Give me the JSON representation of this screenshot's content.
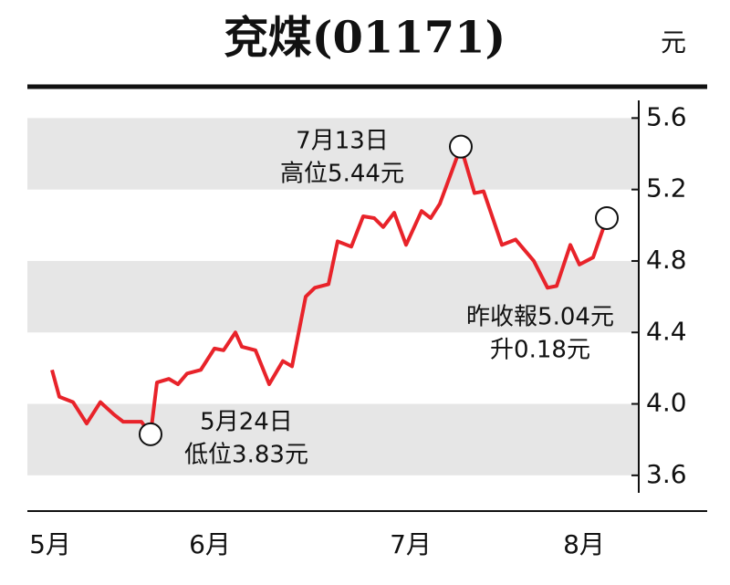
{
  "chart_data": {
    "type": "line",
    "title": "兗煤(01171)",
    "y_unit": "元",
    "x": [
      5.7,
      6.5,
      8.0,
      9.5,
      11.0,
      12.5,
      13.5,
      15.5,
      16.5,
      17.2,
      18.5,
      19.5,
      20.5,
      22.0,
      23.5,
      24.5,
      25.8,
      26.5,
      28.0,
      29.5,
      31.0,
      32.0,
      33.5,
      34.5,
      36.0,
      37.0,
      38.5,
      39.8,
      41.0,
      42.0,
      43.2,
      44.5,
      46.2,
      47.2,
      48.2,
      49.5,
      50.5,
      52.0,
      53.0,
      55.0,
      56.5,
      58.5,
      60.0,
      61.0,
      62.5,
      63.5,
      65.0,
      66.5
    ],
    "series": [
      {
        "name": "兗煤",
        "color": "#e8232a",
        "values": [
          4.19,
          4.04,
          4.01,
          3.89,
          4.01,
          3.94,
          3.9,
          3.9,
          3.83,
          4.12,
          4.14,
          4.11,
          4.17,
          4.19,
          4.31,
          4.3,
          4.4,
          4.32,
          4.3,
          4.11,
          4.24,
          4.21,
          4.6,
          4.65,
          4.67,
          4.91,
          4.88,
          5.05,
          5.04,
          4.99,
          5.07,
          4.89,
          5.08,
          5.04,
          5.12,
          5.3,
          5.44,
          5.18,
          5.19,
          4.89,
          4.92,
          4.8,
          4.65,
          4.66,
          4.89,
          4.78,
          4.82,
          5.04
        ]
      }
    ],
    "highlights": [
      8,
      36,
      47
    ],
    "xlim": [
      3,
      70
    ],
    "xticks": [
      {
        "value": 5.5,
        "label": "5月"
      },
      {
        "value": 23,
        "label": "6月"
      },
      {
        "value": 45,
        "label": "7月"
      },
      {
        "value": 64,
        "label": "8月"
      }
    ],
    "ylim": [
      3.4,
      5.75
    ],
    "yticks": [
      {
        "value": 3.6,
        "label": "3.6"
      },
      {
        "value": 4.0,
        "label": "4.0"
      },
      {
        "value": 4.4,
        "label": "4.4"
      },
      {
        "value": 4.8,
        "label": "4.8"
      },
      {
        "value": 5.2,
        "label": "5.2"
      },
      {
        "value": 5.6,
        "label": "5.6"
      }
    ],
    "bands": true,
    "annotations": [
      {
        "lines": [
          "5月24日",
          "低位3.83元"
        ]
      },
      {
        "lines": [
          "7月13日",
          "高位5.44元"
        ]
      },
      {
        "lines": [
          "昨收報5.04元",
          "升0.18元"
        ]
      }
    ]
  }
}
